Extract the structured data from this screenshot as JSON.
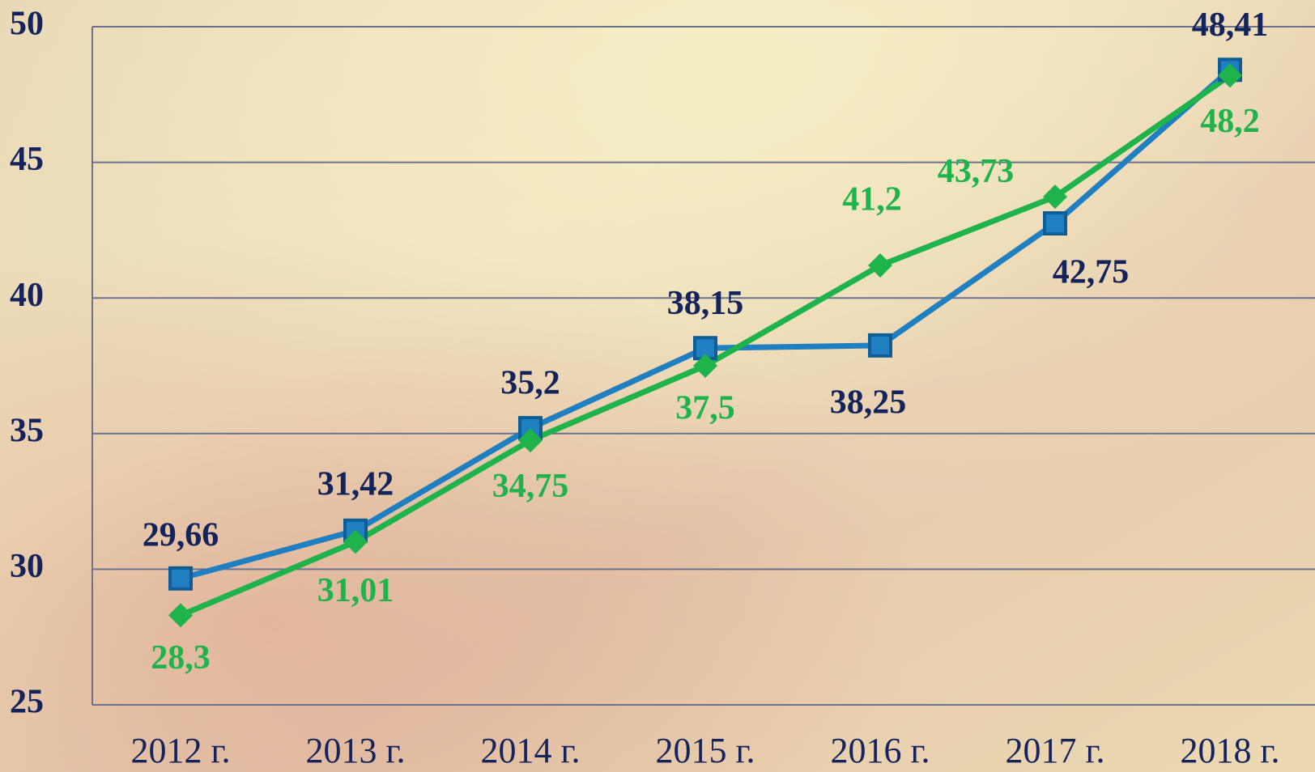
{
  "chart_data": {
    "type": "line",
    "categories": [
      "2012 г.",
      "2013 г.",
      "2014 г.",
      "2015 г.",
      "2016 г.",
      "2017 г.",
      "2018 г."
    ],
    "series": [
      {
        "color": "#1f7fc0",
        "label_color": "#14235a",
        "marker": "square",
        "values": [
          29.66,
          31.42,
          35.2,
          38.15,
          38.25,
          42.75,
          48.41
        ],
        "value_labels": [
          "29,66",
          "31,42",
          "35,2",
          "38,15",
          "38,25",
          "42,75",
          "48,41"
        ]
      },
      {
        "color": "#1fb34b",
        "label_color": "#1fb34b",
        "marker": "diamond",
        "values": [
          28.3,
          31.01,
          34.75,
          37.5,
          41.2,
          43.73,
          48.2
        ],
        "value_labels": [
          "28,3",
          "31,01",
          "34,75",
          "37,5",
          "41,2",
          "43,73",
          "48,2"
        ]
      }
    ],
    "ylim": [
      25,
      50
    ],
    "yticks": [
      25,
      30,
      35,
      40,
      45,
      50
    ],
    "grid": true
  }
}
